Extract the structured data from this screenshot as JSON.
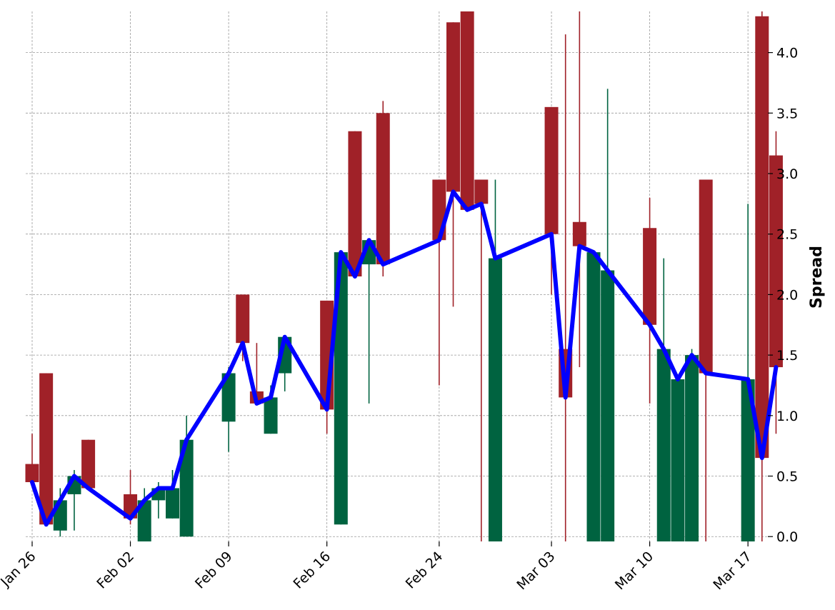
{
  "chart_data": {
    "type": "candlestick",
    "title": "",
    "xlabel": "",
    "ylabel": "Spread",
    "ylim": [
      -0.04,
      4.34
    ],
    "y_axis_side": "right",
    "grid": true,
    "x_ticks": [
      "Jan 26",
      "Feb 02",
      "Feb 09",
      "Feb 16",
      "Feb 24",
      "Mar 03",
      "Mar 10",
      "Mar 17"
    ],
    "y_ticks": [
      "0.0",
      "0.5",
      "1.0",
      "1.5",
      "2.0",
      "2.5",
      "3.0",
      "3.5",
      "4.0"
    ],
    "colors": {
      "up": "#006340",
      "down": "#A02128",
      "line": "#0000FF"
    },
    "candles": [
      {
        "date": "2024-01-26",
        "open": 0.6,
        "high": 0.85,
        "low": 0.45,
        "close": 0.45
      },
      {
        "date": "2024-01-27",
        "open": 1.35,
        "high": 1.35,
        "low": 0.1,
        "close": 0.1
      },
      {
        "date": "2024-01-28",
        "open": 0.05,
        "high": 0.4,
        "low": 0.0,
        "close": 0.3
      },
      {
        "date": "2024-01-29",
        "open": 0.35,
        "high": 0.55,
        "low": 0.05,
        "close": 0.5
      },
      {
        "date": "2024-01-30",
        "open": 0.8,
        "high": 0.8,
        "low": 0.4,
        "close": 0.4
      },
      {
        "date": "2024-02-02",
        "open": 0.35,
        "high": 0.55,
        "low": 0.1,
        "close": 0.15
      },
      {
        "date": "2024-02-03",
        "open": -0.05,
        "high": 0.4,
        "low": -0.05,
        "close": 0.3
      },
      {
        "date": "2024-02-04",
        "open": 0.3,
        "high": 0.45,
        "low": 0.15,
        "close": 0.4
      },
      {
        "date": "2024-02-05",
        "open": 0.15,
        "high": 0.55,
        "low": 0.15,
        "close": 0.4
      },
      {
        "date": "2024-02-06",
        "open": 0.0,
        "high": 1.0,
        "low": 0.0,
        "close": 0.8
      },
      {
        "date": "2024-02-09",
        "open": 0.95,
        "high": 1.4,
        "low": 0.7,
        "close": 1.35
      },
      {
        "date": "2024-02-10",
        "open": 2.0,
        "high": 2.0,
        "low": 1.45,
        "close": 1.6
      },
      {
        "date": "2024-02-11",
        "open": 1.2,
        "high": 1.6,
        "low": 1.1,
        "close": 1.1
      },
      {
        "date": "2024-02-12",
        "open": 0.85,
        "high": 1.25,
        "low": 0.85,
        "close": 1.15
      },
      {
        "date": "2024-02-13",
        "open": 1.35,
        "high": 1.65,
        "low": 1.2,
        "close": 1.65
      },
      {
        "date": "2024-02-16",
        "open": 1.95,
        "high": 1.95,
        "low": 0.85,
        "close": 1.05
      },
      {
        "date": "2024-02-17",
        "open": 0.1,
        "high": 2.35,
        "low": 0.1,
        "close": 2.35
      },
      {
        "date": "2024-02-18",
        "open": 3.35,
        "high": 3.35,
        "low": 2.15,
        "close": 2.15
      },
      {
        "date": "2024-02-19",
        "open": 2.25,
        "high": 2.45,
        "low": 1.1,
        "close": 2.45
      },
      {
        "date": "2024-02-20",
        "open": 3.5,
        "high": 3.6,
        "low": 2.15,
        "close": 2.25
      },
      {
        "date": "2024-02-24",
        "open": 2.95,
        "high": 2.95,
        "low": 1.25,
        "close": 2.45
      },
      {
        "date": "2024-02-25",
        "open": 4.25,
        "high": 4.25,
        "low": 1.9,
        "close": 2.85
      },
      {
        "date": "2024-02-26",
        "open": 4.35,
        "high": 4.35,
        "low": 2.7,
        "close": 2.7
      },
      {
        "date": "2024-02-27",
        "open": 2.95,
        "high": 2.95,
        "low": -0.05,
        "close": 2.75
      },
      {
        "date": "2024-02-28",
        "open": -0.05,
        "high": 2.95,
        "low": -0.05,
        "close": 2.3
      },
      {
        "date": "2024-03-03",
        "open": 3.55,
        "high": 3.55,
        "low": 2.0,
        "close": 2.5
      },
      {
        "date": "2024-03-04",
        "open": 1.55,
        "high": 4.15,
        "low": -0.05,
        "close": 1.15
      },
      {
        "date": "2024-03-05",
        "open": 2.6,
        "high": 4.35,
        "low": 1.4,
        "close": 2.4
      },
      {
        "date": "2024-03-06",
        "open": -0.05,
        "high": 2.35,
        "low": -0.05,
        "close": 2.35
      },
      {
        "date": "2024-03-07",
        "open": -0.05,
        "high": 3.7,
        "low": -0.05,
        "close": 2.2
      },
      {
        "date": "2024-03-10",
        "open": 2.55,
        "high": 2.8,
        "low": 1.1,
        "close": 1.75
      },
      {
        "date": "2024-03-11",
        "open": -0.05,
        "high": 2.3,
        "low": -0.05,
        "close": 1.55
      },
      {
        "date": "2024-03-12",
        "open": -0.05,
        "high": 1.3,
        "low": -0.05,
        "close": 1.3
      },
      {
        "date": "2024-03-13",
        "open": -0.05,
        "high": 1.55,
        "low": -0.05,
        "close": 1.5
      },
      {
        "date": "2024-03-14",
        "open": 2.95,
        "high": 2.95,
        "low": -0.05,
        "close": 1.35
      },
      {
        "date": "2024-03-17",
        "open": -0.05,
        "high": 2.75,
        "low": -0.05,
        "close": 1.3
      },
      {
        "date": "2024-03-18",
        "open": 4.3,
        "high": 4.35,
        "low": -0.05,
        "close": 0.65
      },
      {
        "date": "2024-03-19",
        "open": 3.15,
        "high": 3.35,
        "low": 0.85,
        "close": 1.4
      }
    ]
  }
}
